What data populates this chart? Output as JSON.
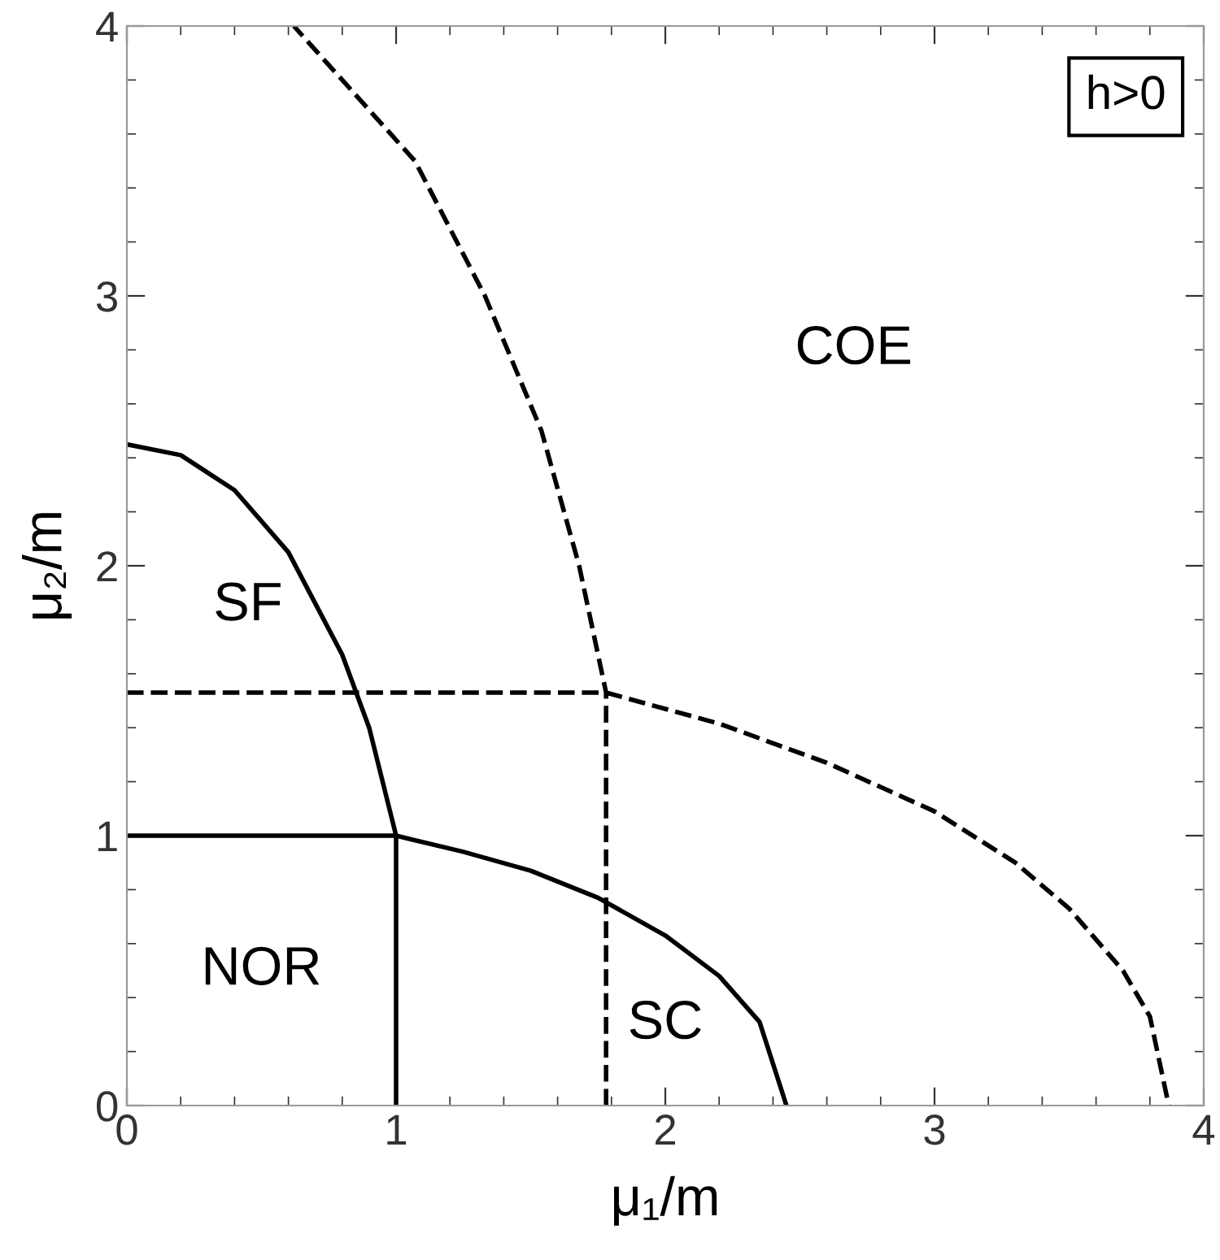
{
  "chart_data": {
    "type": "line",
    "xlabel": "μ₁/m",
    "ylabel": "μ₂/m",
    "xlim": [
      0,
      4
    ],
    "ylim": [
      0,
      4
    ],
    "xticks": [
      0,
      1,
      2,
      3,
      4
    ],
    "yticks": [
      0,
      1,
      2,
      3,
      4
    ],
    "grid": false,
    "marker": "none",
    "series": [
      {
        "color": "#000000",
        "line_style": "solid",
        "x": [
          0,
          1,
          1.25,
          1.5,
          1.75,
          2,
          2.2,
          2.35,
          2.45,
          null,
          1,
          1,
          0.9,
          0.8,
          0.6,
          0.4,
          0.2,
          0
        ],
        "values": [
          1,
          1,
          0.94,
          0.87,
          0.77,
          0.63,
          0.48,
          0.31,
          0,
          null,
          0,
          1,
          1.4,
          1.67,
          2.05,
          2.28,
          2.41,
          2.45
        ]
      },
      {
        "color": "#000000",
        "line_style": "dashed",
        "x": [
          0,
          1.78,
          2.2,
          2.6,
          3,
          3.3,
          3.5,
          3.7,
          3.8,
          3.87,
          null,
          1.78,
          1.78,
          1.68,
          1.54,
          1.33,
          1.07,
          0.62
        ],
        "values": [
          1.53,
          1.53,
          1.415,
          1.27,
          1.09,
          0.9,
          0.73,
          0.5,
          0.33,
          0,
          null,
          0,
          1.53,
          2,
          2.5,
          3,
          3.5,
          4
        ]
      }
    ],
    "annotations": [
      "SF",
      "NOR",
      "SC",
      "COE",
      "h>0"
    ]
  }
}
